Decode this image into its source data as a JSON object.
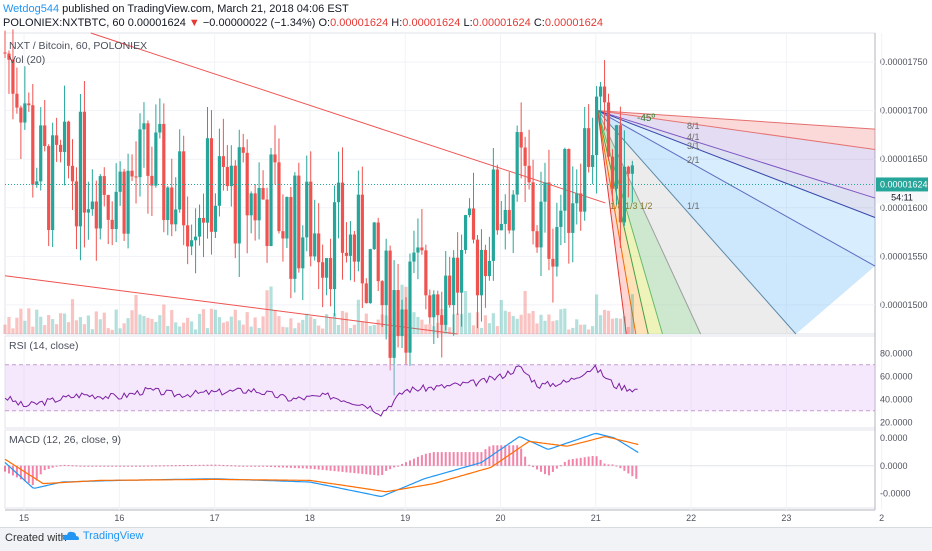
{
  "header": {
    "author": "Wetdog544",
    "published_text": "published on TradingView.com, March 21, 2018 04:06 EST",
    "symbol_line": "POLONIEX:NXTBTC, 60",
    "last_price": "0.00001624",
    "change_arrow": "▼",
    "change": "−0.00000022 (−1.34%)",
    "o_label": "O:",
    "o_value": "0.00001624",
    "h_label": "H:",
    "h_value": "0.00001624",
    "l_label": "L:",
    "l_value": "0.00001624",
    "c_label": "C:",
    "c_value": "0.00001624"
  },
  "chart_labels": {
    "main_title": "NXT / Bitcoin, 60, POLONIEX",
    "volume": "Vol (20)",
    "rsi": "RSI (14, close)",
    "macd": "MACD (12, 26, close, 9)"
  },
  "price_axis": [
    "0.00001750",
    "0.00001700",
    "0.00001650",
    "0.00001600",
    "0.00001550",
    "0.00001500"
  ],
  "current_price_label": "0.00001624",
  "countdown_label": "54:11",
  "rsi_axis": [
    "80.0000",
    "60.0000",
    "40.0000",
    "20.0000"
  ],
  "macd_axis": [
    "0.0000",
    "0.0000",
    "-0.0000"
  ],
  "time_axis": [
    "15",
    "16",
    "17",
    "18",
    "19",
    "20",
    "21",
    "22",
    "23",
    "2"
  ],
  "gann_labels": {
    "angle": "-45º",
    "ratios_top": [
      "8/1",
      "4/1",
      "3/1",
      "2/1",
      "1/1"
    ],
    "ratios_bottom": "1/8 1/3 1/2"
  },
  "footer": {
    "created_with": "Created with",
    "brand": "TradingView"
  },
  "colors": {
    "up": "#26a69a",
    "down": "#ef5350",
    "accent": "#2196f3",
    "rsi_band": "#e9d5f7",
    "rsi_line": "#7b1fa2",
    "macd": "#2196f3",
    "signal": "#ff6d00"
  },
  "chart_data": [
    {
      "type": "candlestick",
      "title": "NXT / Bitcoin, 60, POLONIEX",
      "x_ticks": [
        "15",
        "16",
        "17",
        "18",
        "19",
        "20",
        "21",
        "22",
        "23",
        "2"
      ],
      "y_range": [
        1.47e-05,
        1.78e-05
      ],
      "y_ticks": [
        1.75e-05,
        1.7e-05,
        1.65e-05,
        1.6e-05,
        1.55e-05,
        1.5e-05
      ],
      "close_waypoints": [
        {
          "day": 14.8,
          "close": 1.76e-05
        },
        {
          "day": 15.0,
          "close": 1.72e-05
        },
        {
          "day": 15.1,
          "close": 1.65e-05
        },
        {
          "day": 15.3,
          "close": 1.62e-05
        },
        {
          "day": 15.5,
          "close": 1.64e-05
        },
        {
          "day": 15.7,
          "close": 1.64e-05
        },
        {
          "day": 16.0,
          "close": 1.62e-05
        },
        {
          "day": 16.3,
          "close": 1.64e-05
        },
        {
          "day": 16.6,
          "close": 1.61e-05
        },
        {
          "day": 17.0,
          "close": 1.62e-05
        },
        {
          "day": 17.3,
          "close": 1.61e-05
        },
        {
          "day": 17.6,
          "close": 1.61e-05
        },
        {
          "day": 17.8,
          "close": 1.58e-05
        },
        {
          "day": 18.0,
          "close": 1.58e-05
        },
        {
          "day": 18.3,
          "close": 1.57e-05
        },
        {
          "day": 18.6,
          "close": 1.55e-05
        },
        {
          "day": 18.75,
          "close": 1.5e-05
        },
        {
          "day": 19.0,
          "close": 1.51e-05
        },
        {
          "day": 19.3,
          "close": 1.53e-05
        },
        {
          "day": 19.6,
          "close": 1.53e-05
        },
        {
          "day": 19.8,
          "close": 1.56e-05
        },
        {
          "day": 20.0,
          "close": 1.61e-05
        },
        {
          "day": 20.2,
          "close": 1.63e-05
        },
        {
          "day": 20.4,
          "close": 1.58e-05
        },
        {
          "day": 20.6,
          "close": 1.59e-05
        },
        {
          "day": 20.8,
          "close": 1.64e-05
        },
        {
          "day": 21.0,
          "close": 1.69e-05
        },
        {
          "day": 21.2,
          "close": 1.63e-05
        },
        {
          "day": 21.4,
          "close": 1.62e-05
        }
      ],
      "current_price": 1.624e-05
    },
    {
      "type": "line",
      "title": "RSI (14, close)",
      "y_range": [
        15,
        95
      ],
      "band": [
        30,
        70
      ],
      "y_ticks": [
        80,
        60,
        40,
        20
      ],
      "points": [
        {
          "day": 14.8,
          "value": 42
        },
        {
          "day": 15.0,
          "value": 34
        },
        {
          "day": 15.3,
          "value": 39
        },
        {
          "day": 15.6,
          "value": 44
        },
        {
          "day": 16.0,
          "value": 42
        },
        {
          "day": 16.3,
          "value": 48
        },
        {
          "day": 16.6,
          "value": 44
        },
        {
          "day": 17.0,
          "value": 46
        },
        {
          "day": 17.4,
          "value": 48
        },
        {
          "day": 17.8,
          "value": 40
        },
        {
          "day": 18.2,
          "value": 43
        },
        {
          "day": 18.6,
          "value": 35
        },
        {
          "day": 18.75,
          "value": 28
        },
        {
          "day": 19.0,
          "value": 48
        },
        {
          "day": 19.4,
          "value": 51
        },
        {
          "day": 19.8,
          "value": 55
        },
        {
          "day": 20.0,
          "value": 60
        },
        {
          "day": 20.2,
          "value": 68
        },
        {
          "day": 20.4,
          "value": 52
        },
        {
          "day": 20.7,
          "value": 55
        },
        {
          "day": 20.9,
          "value": 65
        },
        {
          "day": 21.0,
          "value": 67
        },
        {
          "day": 21.2,
          "value": 52
        },
        {
          "day": 21.45,
          "value": 48
        }
      ]
    },
    {
      "type": "line",
      "title": "MACD (12, 26, close, 9)",
      "y_range": [
        -1.3,
        1.1
      ],
      "series": [
        {
          "points": [
            {
              "day": 14.8,
              "value": 0.1
            },
            {
              "day": 15.1,
              "value": -0.7
            },
            {
              "day": 15.4,
              "value": -0.5
            },
            {
              "day": 16.0,
              "value": -0.45
            },
            {
              "day": 17.0,
              "value": -0.4
            },
            {
              "day": 18.0,
              "value": -0.5
            },
            {
              "day": 18.75,
              "value": -0.95
            },
            {
              "day": 19.2,
              "value": -0.4
            },
            {
              "day": 19.8,
              "value": 0.1
            },
            {
              "day": 20.2,
              "value": 0.9
            },
            {
              "day": 20.5,
              "value": 0.5
            },
            {
              "day": 21.0,
              "value": 1.0
            },
            {
              "day": 21.2,
              "value": 0.85
            },
            {
              "day": 21.45,
              "value": 0.4
            }
          ]
        },
        {
          "points": [
            {
              "day": 14.8,
              "value": 0.2
            },
            {
              "day": 15.2,
              "value": -0.55
            },
            {
              "day": 15.8,
              "value": -0.45
            },
            {
              "day": 17.0,
              "value": -0.42
            },
            {
              "day": 18.0,
              "value": -0.45
            },
            {
              "day": 18.8,
              "value": -0.8
            },
            {
              "day": 19.3,
              "value": -0.55
            },
            {
              "day": 19.9,
              "value": -0.05
            },
            {
              "day": 20.3,
              "value": 0.75
            },
            {
              "day": 20.7,
              "value": 0.6
            },
            {
              "day": 21.1,
              "value": 0.9
            },
            {
              "day": 21.45,
              "value": 0.65
            }
          ]
        }
      ]
    }
  ]
}
